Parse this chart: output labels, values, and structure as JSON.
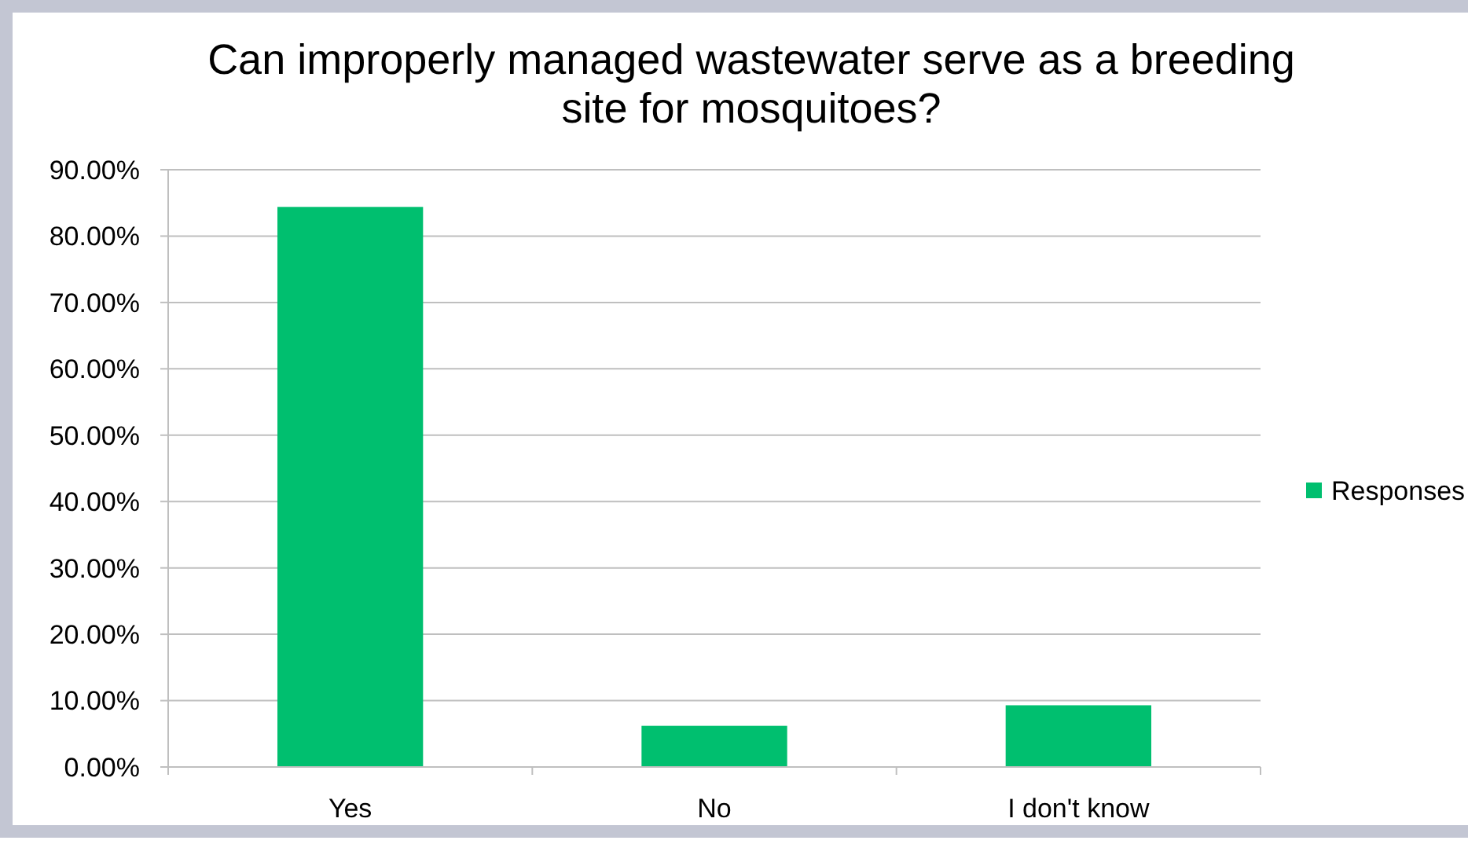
{
  "chart_data": {
    "type": "bar",
    "title": "Can improperly managed wastewater serve as a breeding site for mosquitoes?",
    "categories": [
      "Yes",
      "No",
      "I don't know"
    ],
    "series": [
      {
        "name": "Responses",
        "color": "#00bf6f",
        "values": [
          84.4,
          6.2,
          9.3
        ]
      }
    ],
    "ylim": [
      0,
      90
    ],
    "yticks": [
      {
        "value": 0,
        "label": "0.00%"
      },
      {
        "value": 10,
        "label": "10.00%"
      },
      {
        "value": 20,
        "label": "20.00%"
      },
      {
        "value": 30,
        "label": "30.00%"
      },
      {
        "value": 40,
        "label": "40.00%"
      },
      {
        "value": 50,
        "label": "50.00%"
      },
      {
        "value": 60,
        "label": "60.00%"
      },
      {
        "value": 70,
        "label": "70.00%"
      },
      {
        "value": 80,
        "label": "80.00%"
      },
      {
        "value": 90,
        "label": "90.00%"
      }
    ],
    "grid": "y",
    "legend": "right"
  }
}
